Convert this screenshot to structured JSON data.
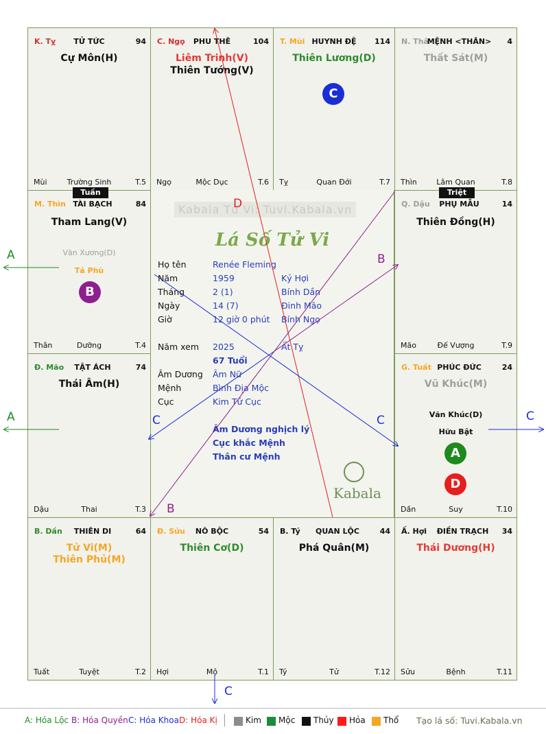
{
  "palaces": [
    {
      "id": "ty",
      "can_chi": "K. Tỵ",
      "cc_color": "#d32f2f",
      "name": "TỬ TỨC",
      "num": "94",
      "stars": [
        {
          "t": "Cự Môn(H)",
          "c": "#111"
        }
      ],
      "minor": [],
      "branch": "Mùi",
      "phase": "Trường Sinh",
      "t": "T.5"
    },
    {
      "id": "ngo",
      "can_chi": "C. Ngọ",
      "cc_color": "#d32f2f",
      "name": "PHU THÊ",
      "num": "104",
      "stars": [
        {
          "t": "Liêm Trinh(V)",
          "c": "#e53935"
        },
        {
          "t": "Thiên Tướng(V)",
          "c": "#111"
        }
      ],
      "minor": [],
      "branch": "Ngọ",
      "phase": "Mộc Dục",
      "t": "T.6"
    },
    {
      "id": "mui",
      "can_chi": "T. Mùi",
      "cc_color": "#f5a623",
      "name": "HUYNH ĐỆ",
      "num": "114",
      "stars": [
        {
          "t": "Thiên Lương(D)",
          "c": "#2e8b2e"
        }
      ],
      "minor": [],
      "branch": "Tỵ",
      "phase": "Quan Đới",
      "t": "T.7"
    },
    {
      "id": "than",
      "can_chi": "N. Thâ",
      "cc_color": "#9e9e9e",
      "name": "MỆNH <THÂN>",
      "num": "4",
      "stars": [
        {
          "t": "Thất Sát(M)",
          "c": "#9e9e9e"
        }
      ],
      "minor": [],
      "branch": "Thìn",
      "phase": "Lâm Quan",
      "t": "T.8"
    },
    {
      "id": "thin",
      "can_chi": "M. Thìn",
      "cc_color": "#f5a623",
      "name": "TÀI BẠCH",
      "num": "84",
      "stars": [
        {
          "t": "Tham Lang(V)",
          "c": "#111"
        }
      ],
      "minor": [
        {
          "t": "Văn Xương(D)",
          "c": "#9e9e9e"
        },
        {
          "t": "Tả Phù",
          "c": "#f5a623"
        }
      ],
      "branch": "Thân",
      "phase": "Dưỡng",
      "t": "T.4"
    },
    {
      "id": "dau",
      "can_chi": "Q. Dậu",
      "cc_color": "#9e9e9e",
      "name": "PHỤ MẪU",
      "num": "14",
      "stars": [
        {
          "t": "Thiên Đồng(H)",
          "c": "#111"
        }
      ],
      "minor": [],
      "branch": "Mão",
      "phase": "Đế Vượng",
      "t": "T.9"
    },
    {
      "id": "mao",
      "can_chi": "Đ. Mão",
      "cc_color": "#2e8b2e",
      "name": "TẬT ÁCH",
      "num": "74",
      "stars": [
        {
          "t": "Thái Âm(H)",
          "c": "#111"
        }
      ],
      "minor": [],
      "branch": "Dậu",
      "phase": "Thai",
      "t": "T.3"
    },
    {
      "id": "tuat",
      "can_chi": "G. Tuất",
      "cc_color": "#f5a623",
      "name": "PHÚC ĐỨC",
      "num": "24",
      "stars": [
        {
          "t": "Vũ Khúc(M)",
          "c": "#9e9e9e"
        }
      ],
      "minor": [
        {
          "t": "Văn Khúc(D)",
          "c": "#111"
        },
        {
          "t": "Hữu Bật",
          "c": "#111"
        }
      ],
      "branch": "Dần",
      "phase": "Suy",
      "t": "T.10"
    },
    {
      "id": "dan",
      "can_chi": "B. Dần",
      "cc_color": "#2e8b2e",
      "name": "THIÊN DI",
      "num": "64",
      "stars": [
        {
          "t": "Tử Vi(M)",
          "c": "#f5a623"
        },
        {
          "t": "Thiên Phủ(M)",
          "c": "#f5a623"
        }
      ],
      "minor": [],
      "branch": "Tuất",
      "phase": "Tuyệt",
      "t": "T.2"
    },
    {
      "id": "suu",
      "can_chi": "Đ. Sửu",
      "cc_color": "#f5a623",
      "name": "NÔ BỘC",
      "num": "54",
      "stars": [
        {
          "t": "Thiên Cơ(D)",
          "c": "#2e8b2e"
        }
      ],
      "minor": [],
      "branch": "Hợi",
      "phase": "Mộ",
      "t": "T.1"
    },
    {
      "id": "ty2",
      "can_chi": "B. Tý",
      "cc_color": "#111",
      "name": "QUAN LỘC",
      "num": "44",
      "stars": [
        {
          "t": "Phá Quân(M)",
          "c": "#111"
        }
      ],
      "minor": [],
      "branch": "Tý",
      "phase": "Tử",
      "t": "T.12"
    },
    {
      "id": "hoi",
      "can_chi": "Ấ. Hợi",
      "cc_color": "#111",
      "name": "ĐIỀN TRẠCH",
      "num": "34",
      "stars": [
        {
          "t": "Thái Dương(H)",
          "c": "#e53935"
        }
      ],
      "minor": [],
      "branch": "Sửu",
      "phase": "Bệnh",
      "t": "T.11"
    }
  ],
  "tags": {
    "tuan": "Tuần",
    "triet": "Triệt"
  },
  "markers": {
    "a": "A",
    "b": "B",
    "c": "C",
    "d": "D"
  },
  "arrow_labels": {
    "a": "A",
    "b": "B",
    "c": "C",
    "d": "D"
  },
  "center": {
    "watermark": "Kabala Tử Vi: Tuvi.Kabala.vn",
    "script_title": "Lá Số Tử Vi",
    "brand": "Kabala",
    "rows": [
      {
        "label": "Họ tên",
        "value": "Renée Fleming",
        "extra": ""
      },
      {
        "label": "Năm",
        "value": "1959",
        "extra": "Kỷ Hợi"
      },
      {
        "label": "Tháng",
        "value": "2  (1)",
        "extra": "Bính Dần"
      },
      {
        "label": "Ngày",
        "value": "14  (7)",
        "extra": "Đinh Mão"
      },
      {
        "label": "Giờ",
        "value": "12 giờ 0 phút",
        "extra": "Bính Ngọ"
      },
      {
        "label": "Năm xem",
        "value": "2025",
        "extra": "Ất Tỵ"
      },
      {
        "label": "",
        "value": "67 Tuổi",
        "extra": ""
      },
      {
        "label": "Âm Dương",
        "value": "Âm Nữ",
        "extra": ""
      },
      {
        "label": "Mệnh",
        "value": "Bình Địa Mộc",
        "extra": ""
      },
      {
        "label": "Cục",
        "value": "Kim Tứ Cục",
        "extra": ""
      }
    ],
    "notes": [
      "Âm Dương nghịch lý",
      "Cục khắc Mệnh",
      "Thân cư Mệnh"
    ]
  },
  "legend": {
    "a": "A: Hóa Lộc",
    "b": "B: Hóa Quyền",
    "c": "C: Hóa Khoa",
    "d": "D: Hóa Kị",
    "elements": [
      {
        "name": "Kim",
        "color": "#8c8c8c"
      },
      {
        "name": "Mộc",
        "color": "#1e8a3c"
      },
      {
        "name": "Thủy",
        "color": "#111111"
      },
      {
        "name": "Hỏa",
        "color": "#ff1a1a"
      },
      {
        "name": "Thổ",
        "color": "#f5a623"
      }
    ],
    "site": "Tạo lá số: Tuvi.Kabala.vn"
  },
  "colors": {
    "a": "#1e8a1e",
    "b": "#8e1f8e",
    "c": "#1a2ed6",
    "d": "#e61e1e"
  }
}
